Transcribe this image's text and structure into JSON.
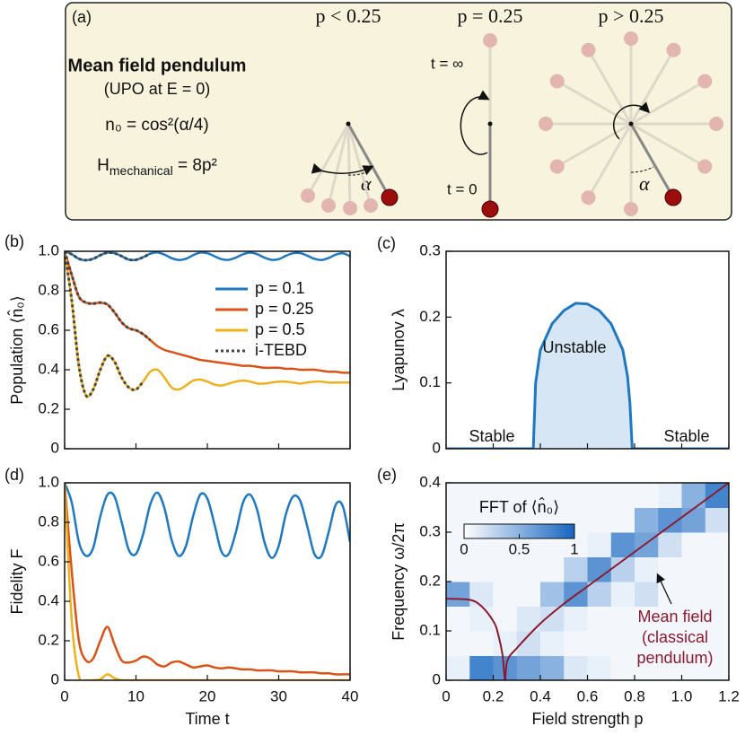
{
  "diagram": {
    "label": "(a)",
    "cases": [
      "p < 0.25",
      "p = 0.25",
      "p > 0.25"
    ],
    "title": "Mean field pendulum",
    "subtitle": "(UPO at E = 0)",
    "formula1": "n₀ = cos²(α/4)",
    "formula2": {
      "symbol": "H",
      "subscript": "mechanical",
      "rest": " = 8p²"
    },
    "times": [
      "t = ∞",
      "t = 0"
    ],
    "angle": "α"
  },
  "chart_data": [
    {
      "type": "line",
      "panel_label": "(b)",
      "ylabel": "Population ⟨n̂₀⟩",
      "xlim": [
        0,
        40
      ],
      "ylim": [
        0,
        1
      ],
      "xticks": [
        0,
        10,
        20,
        30,
        40
      ],
      "xticklabels": false,
      "yticks": [
        0,
        0.2,
        0.4,
        0.6,
        0.8,
        {
          "value": 1,
          "label": "1.0"
        }
      ],
      "legend": "center right",
      "x": [
        0,
        1,
        2,
        3,
        4,
        5,
        6,
        7,
        8,
        9,
        10,
        11,
        12,
        13,
        14,
        15,
        16,
        17,
        18,
        19,
        20,
        21,
        22,
        23,
        24,
        25,
        26,
        27,
        28,
        29,
        30,
        31,
        32,
        33,
        34,
        35,
        36,
        37,
        38,
        39,
        40
      ],
      "series": [
        {
          "name": "p = 0.1",
          "color": "#1f78c0",
          "values": [
            1.0,
            0.985,
            0.962,
            0.955,
            0.962,
            0.98,
            0.993,
            0.99,
            0.975,
            0.958,
            0.957,
            0.97,
            0.988,
            0.994,
            0.983,
            0.965,
            0.956,
            0.962,
            0.98,
            0.993,
            0.99,
            0.975,
            0.96,
            0.957,
            0.968,
            0.985,
            0.993,
            0.985,
            0.968,
            0.957,
            0.96,
            0.977,
            0.99,
            0.991,
            0.978,
            0.962,
            0.956,
            0.966,
            0.983,
            0.99,
            0.975
          ]
        },
        {
          "name": "p = 0.25",
          "color": "#d95319",
          "values": [
            1.0,
            0.88,
            0.77,
            0.74,
            0.735,
            0.74,
            0.73,
            0.69,
            0.64,
            0.61,
            0.6,
            0.58,
            0.55,
            0.52,
            0.5,
            0.49,
            0.48,
            0.47,
            0.46,
            0.45,
            0.445,
            0.44,
            0.435,
            0.43,
            0.425,
            0.42,
            0.42,
            0.415,
            0.41,
            0.41,
            0.41,
            0.405,
            0.405,
            0.4,
            0.4,
            0.4,
            0.395,
            0.39,
            0.39,
            0.385,
            0.385
          ]
        },
        {
          "name": "p = 0.5",
          "color": "#edb120",
          "values": [
            1.0,
            0.75,
            0.42,
            0.27,
            0.3,
            0.4,
            0.47,
            0.44,
            0.36,
            0.31,
            0.3,
            0.34,
            0.39,
            0.4,
            0.36,
            0.31,
            0.3,
            0.32,
            0.345,
            0.35,
            0.34,
            0.325,
            0.32,
            0.33,
            0.34,
            0.345,
            0.34,
            0.33,
            0.33,
            0.335,
            0.34,
            0.34,
            0.335,
            0.33,
            0.335,
            0.34,
            0.34,
            0.335,
            0.335,
            0.335,
            0.335
          ]
        },
        {
          "name": "i-TEBD",
          "color": "#444444",
          "dashed": true,
          "x": [
            0,
            1,
            2,
            3,
            4,
            5,
            6,
            7,
            8,
            9,
            10,
            11,
            12
          ],
          "values": [
            [
              1.0,
              0.985,
              0.962,
              0.955,
              0.962,
              0.98,
              0.993,
              0.99,
              0.975,
              0.958,
              0.957,
              0.97,
              0.988
            ],
            [
              1.0,
              0.88,
              0.77,
              0.74,
              0.735,
              0.74,
              0.73,
              0.69,
              0.64,
              0.61,
              0.6,
              0.58,
              0.55
            ],
            [
              1.0,
              0.75,
              0.42,
              0.27,
              0.3,
              0.4,
              0.47,
              0.44,
              0.36,
              0.31,
              0.3,
              0.34,
              null
            ]
          ]
        }
      ]
    },
    {
      "type": "area",
      "panel_label": "(c)",
      "ylabel": "Lyapunov λ",
      "xlim": [
        0,
        1.2
      ],
      "ylim": [
        0,
        0.3
      ],
      "xticks": [
        0,
        0.2,
        0.4,
        0.6,
        0.8,
        {
          "value": 1,
          "label": "1.0"
        },
        1.2
      ],
      "xticklabels": false,
      "yticks": [
        0,
        0.1,
        0.2,
        0.3
      ],
      "regions": [
        "Stable",
        "Unstable",
        "Stable"
      ],
      "x": [
        0,
        0.1,
        0.2,
        0.3,
        0.36,
        0.37,
        0.38,
        0.4,
        0.45,
        0.5,
        0.55,
        0.6,
        0.65,
        0.7,
        0.75,
        0.77,
        0.78,
        0.79,
        0.8,
        0.9,
        1.0,
        1.1,
        1.2
      ],
      "series": [
        {
          "color": "#1f78c0",
          "fill": "#d6e6f4",
          "values": [
            0,
            0,
            0,
            0,
            0,
            0,
            0.1,
            0.15,
            0.19,
            0.21,
            0.221,
            0.22,
            0.21,
            0.19,
            0.15,
            0.11,
            0.07,
            0,
            0,
            0,
            0,
            0,
            0
          ]
        }
      ]
    },
    {
      "type": "line",
      "panel_label": "(d)",
      "ylabel": "Fidelity F",
      "xlabel": "Time t",
      "xlim": [
        0,
        40
      ],
      "ylim": [
        0,
        1
      ],
      "xticks": [
        0,
        10,
        20,
        30,
        40
      ],
      "yticks": [
        0,
        0.2,
        0.4,
        0.6,
        0.8,
        {
          "value": 1,
          "label": "1.0"
        }
      ],
      "x": [
        0,
        1,
        2,
        3,
        4,
        5,
        6,
        7,
        8,
        9,
        10,
        11,
        12,
        13,
        14,
        15,
        16,
        17,
        18,
        19,
        20,
        21,
        22,
        23,
        24,
        25,
        26,
        27,
        28,
        29,
        30,
        31,
        32,
        33,
        34,
        35,
        36,
        37,
        38,
        39,
        40
      ],
      "series": [
        {
          "color": "#1f78c0",
          "values": [
            1.0,
            0.9,
            0.7,
            0.63,
            0.67,
            0.83,
            0.94,
            0.93,
            0.8,
            0.66,
            0.64,
            0.74,
            0.89,
            0.95,
            0.87,
            0.71,
            0.63,
            0.68,
            0.83,
            0.94,
            0.92,
            0.79,
            0.65,
            0.64,
            0.75,
            0.9,
            0.94,
            0.86,
            0.7,
            0.62,
            0.68,
            0.84,
            0.93,
            0.91,
            0.78,
            0.64,
            0.63,
            0.75,
            0.89,
            0.88,
            0.7
          ]
        },
        {
          "color": "#d95319",
          "values": [
            1.0,
            0.55,
            0.2,
            0.1,
            0.11,
            0.2,
            0.27,
            0.18,
            0.1,
            0.09,
            0.1,
            0.12,
            0.11,
            0.08,
            0.07,
            0.09,
            0.095,
            0.08,
            0.065,
            0.07,
            0.075,
            0.065,
            0.06,
            0.065,
            0.06,
            0.055,
            0.055,
            0.05,
            0.05,
            0.05,
            0.045,
            0.045,
            0.045,
            0.04,
            0.04,
            0.04,
            0.035,
            0.035,
            0.03,
            0.03,
            0.03
          ]
        },
        {
          "color": "#edb120",
          "values": [
            1.0,
            0.3,
            0.02,
            0,
            0,
            0.005,
            0.03,
            0.01,
            0,
            0,
            0,
            0,
            0,
            0,
            0,
            0,
            0,
            0,
            0,
            0,
            0,
            0,
            0,
            0,
            0,
            0,
            0,
            0,
            0,
            0,
            0,
            0,
            0,
            0,
            0,
            0,
            0,
            0,
            0,
            0,
            0
          ]
        }
      ]
    },
    {
      "type": "heatmap",
      "panel_label": "(e)",
      "ylabel": "Frequency ω/2π",
      "xlabel": "Field strength p",
      "xlim": [
        0,
        1.2
      ],
      "ylim": [
        0,
        0.4
      ],
      "xticks": [
        0,
        0.2,
        0.4,
        0.6,
        0.8,
        {
          "value": 1,
          "label": "1.0"
        },
        1.2
      ],
      "yticks": [
        0,
        0.1,
        0.2,
        0.3,
        0.4
      ],
      "x_edges": [
        0,
        0.1,
        0.2,
        0.3,
        0.4,
        0.5,
        0.6,
        0.7,
        0.8,
        0.9,
        1.0,
        1.1,
        1.2
      ],
      "y_edges": [
        0,
        0.05,
        0.1,
        0.15,
        0.2,
        0.25,
        0.3,
        0.35,
        0.4
      ],
      "z": [
        [
          0.1,
          0.8,
          0.7,
          0.6,
          0.5,
          0.15,
          0.1,
          0.05,
          0.05,
          0.05,
          0.05,
          0.05
        ],
        [
          0.05,
          0.05,
          0.1,
          0.2,
          0.1,
          0.05,
          0.05,
          0.05,
          0.05,
          0.05,
          0.05,
          0.05
        ],
        [
          0.05,
          0.1,
          0.05,
          0.15,
          0.2,
          0.1,
          0.05,
          0.05,
          0.05,
          0.05,
          0.05,
          0.05
        ],
        [
          0.6,
          0.15,
          0.05,
          0.05,
          0.4,
          0.7,
          0.3,
          0.1,
          0.2,
          0.05,
          0.05,
          0.05
        ],
        [
          0.05,
          0.05,
          0.05,
          0.05,
          0.05,
          0.3,
          0.7,
          0.3,
          0.1,
          0.05,
          0.05,
          0.05
        ],
        [
          0.05,
          0.05,
          0.05,
          0.05,
          0.05,
          0.05,
          0.1,
          0.7,
          0.6,
          0.2,
          0.05,
          0.05
        ],
        [
          0.05,
          0.05,
          0.05,
          0.05,
          0.05,
          0.05,
          0.05,
          0.05,
          0.5,
          0.7,
          0.6,
          0.2
        ],
        [
          0.05,
          0.05,
          0.05,
          0.05,
          0.05,
          0.05,
          0.05,
          0.05,
          0.05,
          0.1,
          0.5,
          0.8
        ]
      ],
      "colorbar": {
        "label": "FFT of ⟨n̂₀⟩",
        "ticks": [
          0,
          0.5,
          1
        ],
        "low": "#ffffff",
        "high": "#1565c0"
      },
      "annotation": [
        "Mean field",
        "(classical",
        "pendulum)"
      ],
      "series": [
        {
          "color": "#8b1a2e",
          "x": [
            0,
            0.1,
            0.15,
            0.2,
            0.22,
            0.24,
            0.25,
            0.26,
            0.3,
            0.4,
            0.5,
            0.6,
            0.7,
            0.8,
            0.9,
            1.0,
            1.1,
            1.2
          ],
          "values": [
            0.165,
            0.163,
            0.15,
            0.12,
            0.095,
            0.05,
            0,
            0.04,
            0.065,
            0.115,
            0.155,
            0.19,
            0.225,
            0.26,
            0.295,
            0.33,
            0.365,
            0.4
          ]
        }
      ]
    }
  ]
}
